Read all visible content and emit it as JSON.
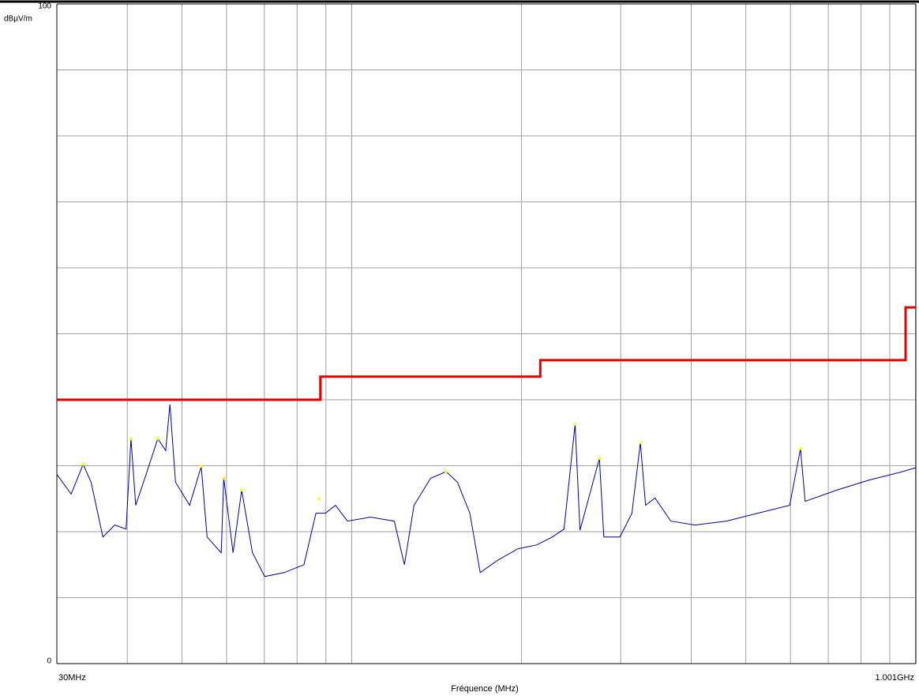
{
  "chart_data": {
    "type": "line",
    "y_unit": "dBµV/m",
    "xlabel": "Fréquence (MHz)",
    "xscale": "log",
    "xlim": [
      30,
      1001
    ],
    "ylim": [
      0,
      100
    ],
    "xticks": [
      {
        "value": 30,
        "label": "30MHz"
      },
      {
        "value": 1001,
        "label": "1.001GHz"
      }
    ],
    "yticks": [
      0,
      100
    ],
    "xgrid": [
      40,
      50,
      60,
      70,
      80,
      90,
      100,
      200,
      300,
      400,
      500,
      600,
      700,
      800,
      900,
      1000
    ],
    "ygrid": [
      10,
      20,
      30,
      40,
      50,
      60,
      70,
      80,
      90
    ],
    "series": [
      {
        "color": "#0000a0",
        "width": 1,
        "x": [
          30,
          31.8,
          33.4,
          34.5,
          36.2,
          38.0,
          39.8,
          40.6,
          41.4,
          43.2,
          45.3,
          46.8,
          47.6,
          48.7,
          51.6,
          54.1,
          55.4,
          58.7,
          59.3,
          61.6,
          63.8,
          66.7,
          70.1,
          75.9,
          82.3,
          86.4,
          89.8,
          93.6,
          98.3,
          108,
          119,
          124,
          129,
          138,
          147,
          154,
          162,
          169,
          181,
          197,
          213,
          227,
          238,
          249,
          254,
          275,
          280,
          299,
          314,
          325,
          332,
          345,
          368,
          406,
          462,
          525,
          598,
          625,
          637,
          725,
          825,
          938,
          1001
        ],
        "values": [
          28.7,
          25.7,
          30.2,
          27.5,
          19.2,
          21,
          20.4,
          34.1,
          24,
          28.7,
          34.1,
          32.3,
          39.3,
          27.5,
          24,
          29.9,
          19.2,
          16.8,
          28.1,
          16.8,
          26.3,
          16.8,
          13.2,
          13.8,
          15,
          22.8,
          22.8,
          24,
          21.6,
          22.2,
          21.6,
          15,
          24,
          28.1,
          29.1,
          27.5,
          22.8,
          13.8,
          15.6,
          17.4,
          18,
          19.2,
          20.4,
          36.3,
          20.2,
          31.1,
          19.2,
          19.2,
          22.8,
          33.5,
          24,
          25.1,
          21.6,
          21,
          21.6,
          22.8,
          24,
          32.6,
          24.6,
          26.3,
          27.8,
          29,
          29.7
        ]
      },
      {
        "color": "#e00000",
        "width": 3,
        "x": [
          30,
          88,
          88,
          216,
          216,
          960,
          960,
          1001
        ],
        "values": [
          40,
          40,
          43.5,
          43.5,
          46,
          46,
          54,
          54
        ]
      },
      {
        "color": "#ffff00",
        "marker": "dot",
        "x": [
          33.4,
          40.6,
          45.3,
          54.1,
          59.3,
          63.8,
          87.5,
          147,
          249,
          275,
          325,
          625
        ],
        "values": [
          30.2,
          34.1,
          34.1,
          29.9,
          28.1,
          26.3,
          25,
          29.1,
          36.3,
          31.1,
          33.5,
          32.6
        ]
      }
    ]
  }
}
